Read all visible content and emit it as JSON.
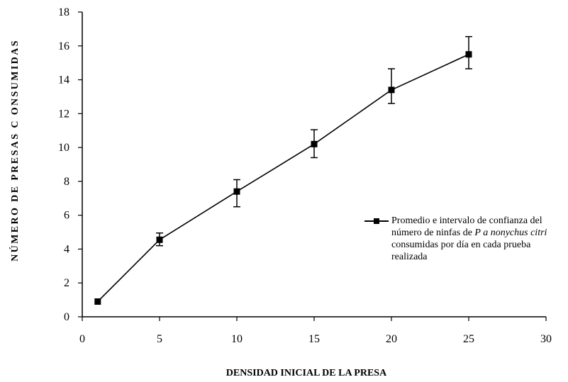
{
  "chart_data": {
    "type": "line",
    "xlabel": "DENSIDAD INICIAL DE LA PRESA",
    "ylabel": "NÚMERO DE PRESAS C ONSUMIDAS",
    "xlim": [
      0,
      30
    ],
    "ylim": [
      0,
      18
    ],
    "x_ticks": [
      "0",
      "5",
      "10",
      "15",
      "20",
      "25",
      "30"
    ],
    "y_ticks": [
      "0",
      "2",
      "4",
      "6",
      "8",
      "10",
      "12",
      "14",
      "16",
      "18"
    ],
    "grid": false,
    "legend_position": "right",
    "legend": {
      "part1": "Promedio e intervalo de confianza   del número de ninfas de ",
      "species": "P a nonychus citri",
      "part2": " consumidas por  día  en cada prueba realizada"
    },
    "series": [
      {
        "x": [
          1,
          5,
          10,
          15,
          20,
          25
        ],
        "y": [
          0.9,
          4.55,
          7.4,
          10.2,
          13.4,
          15.5
        ],
        "err_low": [
          0.9,
          4.2,
          6.5,
          9.4,
          12.6,
          14.65
        ],
        "err_high": [
          0.9,
          4.95,
          8.1,
          11.05,
          14.65,
          16.55
        ]
      }
    ],
    "colors": {
      "line": "#000000",
      "marker": "#000000"
    }
  }
}
